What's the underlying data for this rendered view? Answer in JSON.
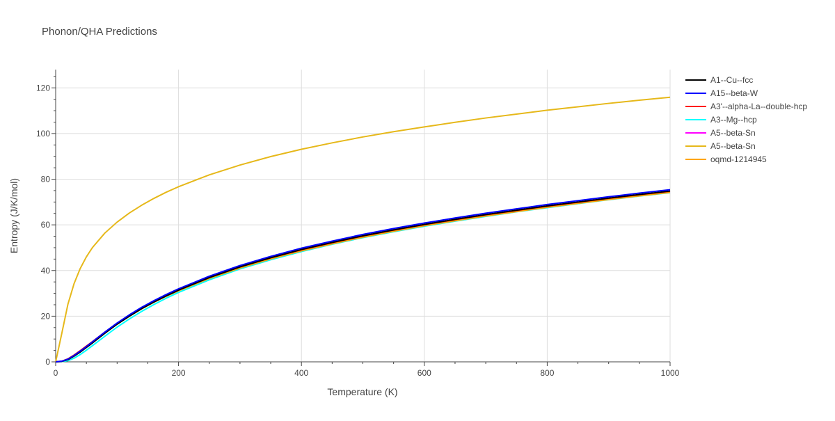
{
  "chart_data": {
    "type": "line",
    "title": "Phonon/QHA Predictions",
    "xlabel": "Temperature (K)",
    "ylabel": "Entropy (J/K/mol)",
    "xlim": [
      0,
      1000
    ],
    "ylim": [
      0,
      128
    ],
    "x_ticks": [
      0,
      200,
      400,
      600,
      800,
      1000
    ],
    "y_ticks": [
      0,
      20,
      40,
      60,
      80,
      100,
      120
    ],
    "grid": true,
    "legend_position": "right",
    "x": [
      0,
      10,
      20,
      30,
      40,
      50,
      60,
      80,
      100,
      120,
      140,
      160,
      180,
      200,
      250,
      300,
      350,
      400,
      450,
      500,
      550,
      600,
      650,
      700,
      750,
      800,
      850,
      900,
      950,
      1000
    ],
    "series": [
      {
        "name": "A1--Cu--fcc",
        "color": "#000000",
        "values": [
          0,
          0.2,
          1.0,
          2.5,
          4.3,
          6.3,
          8.3,
          12.5,
          16.5,
          20.0,
          23.3,
          26.2,
          28.9,
          31.4,
          36.9,
          41.6,
          45.6,
          49.2,
          52.3,
          55.2,
          57.8,
          60.2,
          62.4,
          64.5,
          66.4,
          68.3,
          70.0,
          71.7,
          73.3,
          74.8
        ]
      },
      {
        "name": "A15--beta-W",
        "color": "#0000ff",
        "values": [
          0,
          0.3,
          1.2,
          2.8,
          4.7,
          6.7,
          8.8,
          13.0,
          17.0,
          20.6,
          23.9,
          26.8,
          29.5,
          32.0,
          37.5,
          42.2,
          46.2,
          49.8,
          52.9,
          55.8,
          58.4,
          60.8,
          63.0,
          65.1,
          67.0,
          68.9,
          70.6,
          72.3,
          73.9,
          75.4
        ]
      },
      {
        "name": "A3'--alpha-La--double-hcp",
        "color": "#ff0000",
        "values": [
          0,
          0.3,
          1.3,
          3.0,
          4.9,
          6.9,
          8.9,
          13.0,
          16.9,
          20.4,
          23.6,
          26.5,
          29.2,
          31.6,
          37.0,
          41.6,
          45.6,
          49.1,
          52.2,
          55.1,
          57.7,
          60.1,
          62.3,
          64.4,
          66.3,
          68.2,
          69.9,
          71.6,
          73.2,
          74.7
        ]
      },
      {
        "name": "A3--Mg--hcp",
        "color": "#00ffff",
        "values": [
          0,
          0.1,
          0.5,
          1.6,
          3.2,
          5.1,
          7.1,
          11.2,
          15.2,
          18.8,
          22.1,
          25.1,
          27.9,
          30.4,
          35.9,
          40.7,
          44.7,
          48.3,
          51.5,
          54.4,
          57.0,
          59.4,
          61.6,
          63.7,
          65.7,
          67.5,
          69.3,
          71.0,
          72.6,
          74.1
        ]
      },
      {
        "name": "A5--beta-Sn",
        "color": "#ff00ff",
        "values": [
          0,
          0.2,
          1.1,
          2.7,
          4.6,
          6.6,
          8.6,
          12.7,
          16.6,
          20.1,
          23.3,
          26.2,
          28.8,
          31.2,
          36.6,
          41.2,
          45.2,
          48.7,
          51.8,
          54.7,
          57.3,
          59.7,
          61.9,
          64.0,
          65.9,
          67.8,
          69.5,
          71.2,
          72.8,
          74.3
        ]
      },
      {
        "name": "A5--beta-Sn",
        "color": "#e6b81a",
        "values": [
          0,
          12.5,
          25.3,
          34.3,
          40.9,
          46.0,
          50.1,
          56.4,
          61.2,
          65.2,
          68.6,
          71.6,
          74.3,
          76.7,
          81.9,
          86.2,
          89.9,
          93.1,
          95.9,
          98.5,
          100.8,
          102.9,
          104.9,
          106.8,
          108.5,
          110.2,
          111.7,
          113.2,
          114.6,
          115.9
        ]
      },
      {
        "name": "oqmd-1214945",
        "color": "#ffa500",
        "values": [
          0,
          0.2,
          1.0,
          2.6,
          4.5,
          6.5,
          8.5,
          12.6,
          16.5,
          20.0,
          23.2,
          26.1,
          28.7,
          31.1,
          36.5,
          41.1,
          45.1,
          48.6,
          51.7,
          54.6,
          57.2,
          59.6,
          61.8,
          63.9,
          65.8,
          67.7,
          69.4,
          71.1,
          72.7,
          74.2
        ]
      }
    ]
  }
}
